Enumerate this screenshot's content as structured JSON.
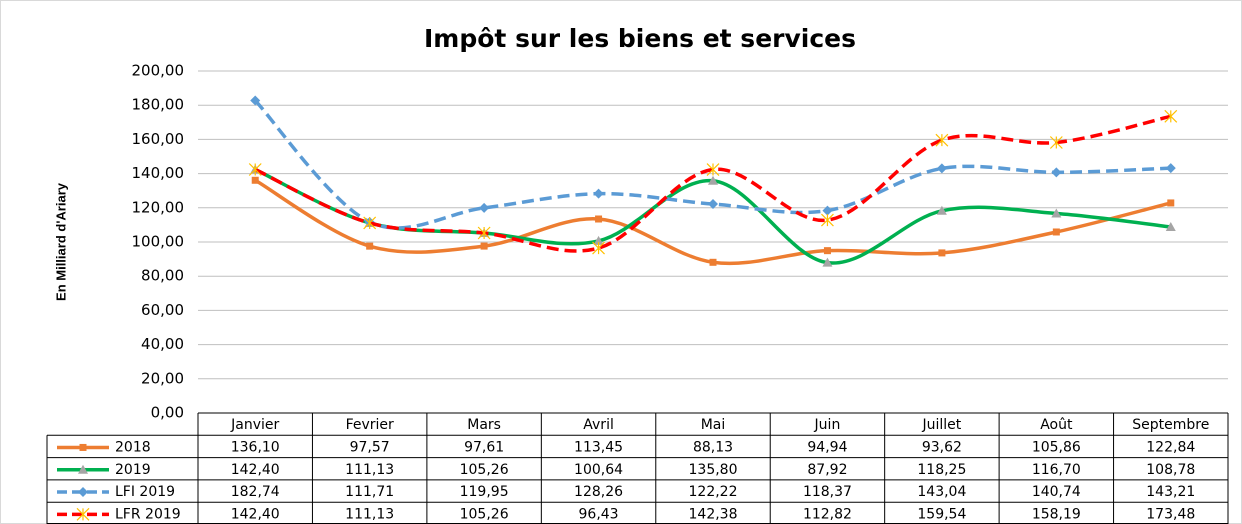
{
  "chart_data": {
    "type": "line",
    "title": "Impôt sur les biens et services",
    "y_label": "En Milliard d'Ariary",
    "categories": [
      "Janvier",
      "Fevrier",
      "Mars",
      "Avril",
      "Mai",
      "Juin",
      "Juillet",
      "Août",
      "Septembre"
    ],
    "ylim": [
      0,
      200
    ],
    "yticks": [
      {
        "value": 0,
        "label": "0,00"
      },
      {
        "value": 20,
        "label": "20,00"
      },
      {
        "value": 40,
        "label": "40,00"
      },
      {
        "value": 60,
        "label": "60,00"
      },
      {
        "value": 80,
        "label": "80,00"
      },
      {
        "value": 100,
        "label": "100,00"
      },
      {
        "value": 120,
        "label": "120,00"
      },
      {
        "value": 140,
        "label": "140,00"
      },
      {
        "value": 160,
        "label": "160,00"
      },
      {
        "value": 180,
        "label": "180,00"
      },
      {
        "value": 200,
        "label": "200,00"
      }
    ],
    "grid": true,
    "series": [
      {
        "name": "2018",
        "color": "#ed7d31",
        "dashed": false,
        "marker": "square",
        "values": [
          136.1,
          97.57,
          97.61,
          113.45,
          88.13,
          94.94,
          93.62,
          105.86,
          122.84
        ],
        "value_labels": [
          "136,10",
          "97,57",
          "97,61",
          "113,45",
          "88,13",
          "94,94",
          "93,62",
          "105,86",
          "122,84"
        ]
      },
      {
        "name": "2019",
        "color": "#00b050",
        "dashed": false,
        "marker": "triangle",
        "values": [
          142.4,
          111.13,
          105.26,
          100.64,
          135.8,
          87.92,
          118.25,
          116.7,
          108.78
        ],
        "value_labels": [
          "142,40",
          "111,13",
          "105,26",
          "100,64",
          "135,80",
          "87,92",
          "118,25",
          "116,70",
          "108,78"
        ]
      },
      {
        "name": "LFI 2019",
        "color": "#5b9bd5",
        "dashed": true,
        "marker": "diamond",
        "values": [
          182.74,
          111.71,
          119.95,
          128.26,
          122.22,
          118.37,
          143.04,
          140.74,
          143.21
        ],
        "value_labels": [
          "182,74",
          "111,71",
          "119,95",
          "128,26",
          "122,22",
          "118,37",
          "143,04",
          "140,74",
          "143,21"
        ]
      },
      {
        "name": "LFR 2019",
        "color": "#ff0000",
        "dashed": true,
        "marker": "star",
        "values": [
          142.4,
          111.13,
          105.26,
          96.43,
          142.38,
          112.82,
          159.54,
          158.19,
          173.48
        ],
        "value_labels": [
          "142,40",
          "111,13",
          "105,26",
          "96,43",
          "142,38",
          "112,82",
          "159,54",
          "158,19",
          "173,48"
        ]
      }
    ]
  }
}
